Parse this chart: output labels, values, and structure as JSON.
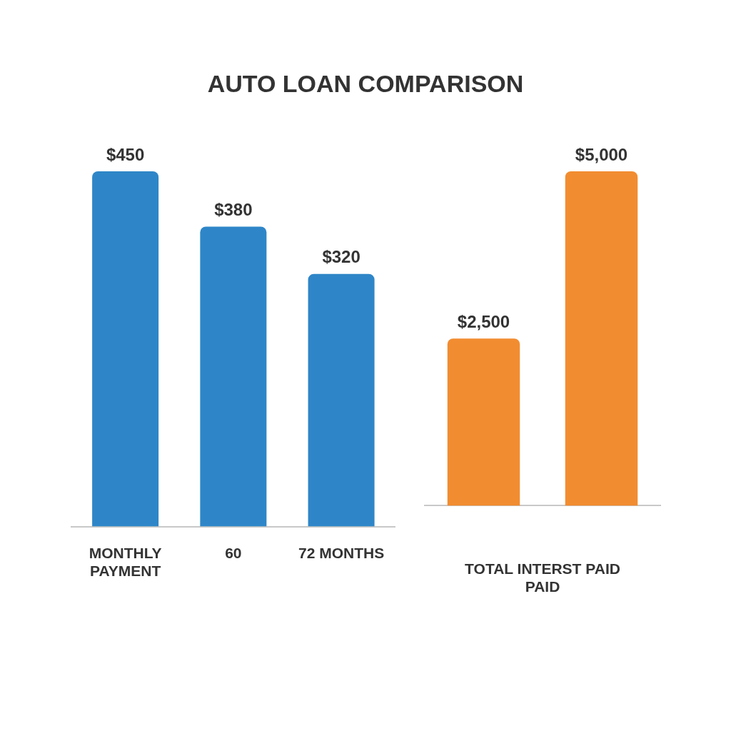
{
  "chart_data": [
    {
      "type": "bar",
      "title": "AUTO LOAN COMPARISON",
      "categories": [
        "MONTHLY PAYMENT",
        "60",
        "72 MONTHS"
      ],
      "values": [
        450,
        380,
        320
      ],
      "color": "#2e86c8",
      "value_labels": [
        "$450",
        "$380",
        "$320"
      ],
      "tick_labels": "x"
    },
    {
      "type": "bar",
      "categories": [
        null,
        null
      ],
      "values": [
        2500,
        5000
      ],
      "color": "#f28c30",
      "value_labels": [
        "$2,500",
        "$5,000"
      ],
      "xlabel": "TOTAL INTERST PAID PAID",
      "tick_labels": "x"
    }
  ]
}
